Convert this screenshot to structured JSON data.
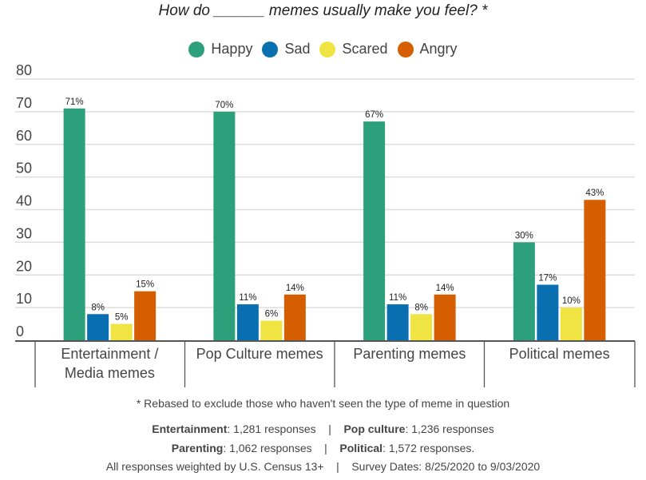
{
  "chart_data": {
    "type": "bar",
    "title": "How do ______ memes usually make you feel? *",
    "categories": [
      "Entertainment / Media memes",
      "Pop Culture memes",
      "Parenting memes",
      "Political memes"
    ],
    "series": [
      {
        "name": "Happy",
        "color": "#2ca07a",
        "values": [
          71,
          70,
          67,
          30
        ]
      },
      {
        "name": "Sad",
        "color": "#0a6fb0",
        "values": [
          8,
          11,
          11,
          17
        ]
      },
      {
        "name": "Scared",
        "color": "#f0e442",
        "values": [
          5,
          6,
          8,
          10
        ]
      },
      {
        "name": "Angry",
        "color": "#d55e00",
        "values": [
          15,
          14,
          14,
          43
        ]
      }
    ],
    "data_label_suffix": "%",
    "ylim": [
      0,
      80
    ],
    "yticks": [
      0,
      10,
      20,
      30,
      40,
      50,
      60,
      70,
      80
    ],
    "grid": true,
    "legend_position": "top"
  },
  "footer": {
    "note": "* Rebased to exclude those who haven't seen the type of meme in question",
    "line1": {
      "a_label": "Entertainment",
      "a_value": ": 1,281 responses",
      "sep": "|",
      "b_label": "Pop culture",
      "b_value": ": 1,236 responses"
    },
    "line2": {
      "a_label": "Parenting",
      "a_value": ": 1,062 responses",
      "sep": "|",
      "b_label": "Political",
      "b_value": ": 1,572 responses."
    },
    "line3": {
      "a": "All responses weighted by U.S. Census 13+",
      "sep": "|",
      "b": "Survey Dates: 8/25/2020 to 9/03/2020"
    }
  }
}
